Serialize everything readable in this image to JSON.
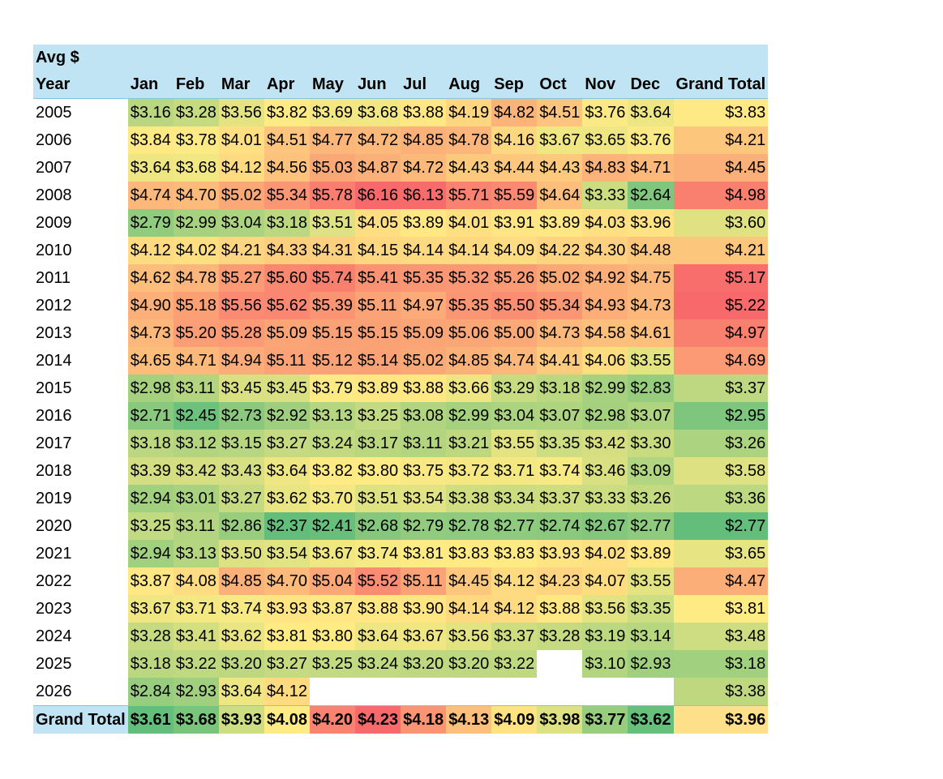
{
  "chart_data": {
    "type": "table",
    "corner_label": "Avg $",
    "row_header": "Year",
    "columns": [
      "Jan",
      "Feb",
      "Mar",
      "Apr",
      "May",
      "Jun",
      "Jul",
      "Aug",
      "Sep",
      "Oct",
      "Nov",
      "Dec"
    ],
    "grand_total_header": "Grand Total",
    "rows": [
      {
        "label": "2005",
        "values": [
          "$3.16",
          "$3.28",
          "$3.56",
          "$3.82",
          "$3.69",
          "$3.68",
          "$3.88",
          "$4.19",
          "$4.82",
          "$4.51",
          "$3.76",
          "$3.64"
        ],
        "total": "$3.83"
      },
      {
        "label": "2006",
        "values": [
          "$3.84",
          "$3.78",
          "$4.01",
          "$4.51",
          "$4.77",
          "$4.72",
          "$4.85",
          "$4.78",
          "$4.16",
          "$3.67",
          "$3.65",
          "$3.76"
        ],
        "total": "$4.21"
      },
      {
        "label": "2007",
        "values": [
          "$3.64",
          "$3.68",
          "$4.12",
          "$4.56",
          "$5.03",
          "$4.87",
          "$4.72",
          "$4.43",
          "$4.44",
          "$4.43",
          "$4.83",
          "$4.71"
        ],
        "total": "$4.45"
      },
      {
        "label": "2008",
        "values": [
          "$4.74",
          "$4.70",
          "$5.02",
          "$5.34",
          "$5.78",
          "$6.16",
          "$6.13",
          "$5.71",
          "$5.59",
          "$4.64",
          "$3.33",
          "$2.64"
        ],
        "total": "$4.98"
      },
      {
        "label": "2009",
        "values": [
          "$2.79",
          "$2.99",
          "$3.04",
          "$3.18",
          "$3.51",
          "$4.05",
          "$3.89",
          "$4.01",
          "$3.91",
          "$3.89",
          "$4.03",
          "$3.96"
        ],
        "total": "$3.60"
      },
      {
        "label": "2010",
        "values": [
          "$4.12",
          "$4.02",
          "$4.21",
          "$4.33",
          "$4.31",
          "$4.15",
          "$4.14",
          "$4.14",
          "$4.09",
          "$4.22",
          "$4.30",
          "$4.48"
        ],
        "total": "$4.21"
      },
      {
        "label": "2011",
        "values": [
          "$4.62",
          "$4.78",
          "$5.27",
          "$5.60",
          "$5.74",
          "$5.41",
          "$5.35",
          "$5.32",
          "$5.26",
          "$5.02",
          "$4.92",
          "$4.75"
        ],
        "total": "$5.17"
      },
      {
        "label": "2012",
        "values": [
          "$4.90",
          "$5.18",
          "$5.56",
          "$5.62",
          "$5.39",
          "$5.11",
          "$4.97",
          "$5.35",
          "$5.50",
          "$5.34",
          "$4.93",
          "$4.73"
        ],
        "total": "$5.22"
      },
      {
        "label": "2013",
        "values": [
          "$4.73",
          "$5.20",
          "$5.28",
          "$5.09",
          "$5.15",
          "$5.15",
          "$5.09",
          "$5.06",
          "$5.00",
          "$4.73",
          "$4.58",
          "$4.61"
        ],
        "total": "$4.97"
      },
      {
        "label": "2014",
        "values": [
          "$4.65",
          "$4.71",
          "$4.94",
          "$5.11",
          "$5.12",
          "$5.14",
          "$5.02",
          "$4.85",
          "$4.74",
          "$4.41",
          "$4.06",
          "$3.55"
        ],
        "total": "$4.69"
      },
      {
        "label": "2015",
        "values": [
          "$2.98",
          "$3.11",
          "$3.45",
          "$3.45",
          "$3.79",
          "$3.89",
          "$3.88",
          "$3.66",
          "$3.29",
          "$3.18",
          "$2.99",
          "$2.83"
        ],
        "total": "$3.37"
      },
      {
        "label": "2016",
        "values": [
          "$2.71",
          "$2.45",
          "$2.73",
          "$2.92",
          "$3.13",
          "$3.25",
          "$3.08",
          "$2.99",
          "$3.04",
          "$3.07",
          "$2.98",
          "$3.07"
        ],
        "total": "$2.95"
      },
      {
        "label": "2017",
        "values": [
          "$3.18",
          "$3.12",
          "$3.15",
          "$3.27",
          "$3.24",
          "$3.17",
          "$3.11",
          "$3.21",
          "$3.55",
          "$3.35",
          "$3.42",
          "$3.30"
        ],
        "total": "$3.26"
      },
      {
        "label": "2018",
        "values": [
          "$3.39",
          "$3.42",
          "$3.43",
          "$3.64",
          "$3.82",
          "$3.80",
          "$3.75",
          "$3.72",
          "$3.71",
          "$3.74",
          "$3.46",
          "$3.09"
        ],
        "total": "$3.58"
      },
      {
        "label": "2019",
        "values": [
          "$2.94",
          "$3.01",
          "$3.27",
          "$3.62",
          "$3.70",
          "$3.51",
          "$3.54",
          "$3.38",
          "$3.34",
          "$3.37",
          "$3.33",
          "$3.26"
        ],
        "total": "$3.36"
      },
      {
        "label": "2020",
        "values": [
          "$3.25",
          "$3.11",
          "$2.86",
          "$2.37",
          "$2.41",
          "$2.68",
          "$2.79",
          "$2.78",
          "$2.77",
          "$2.74",
          "$2.67",
          "$2.77"
        ],
        "total": "$2.77"
      },
      {
        "label": "2021",
        "values": [
          "$2.94",
          "$3.13",
          "$3.50",
          "$3.54",
          "$3.67",
          "$3.74",
          "$3.81",
          "$3.83",
          "$3.83",
          "$3.93",
          "$4.02",
          "$3.89"
        ],
        "total": "$3.65"
      },
      {
        "label": "2022",
        "values": [
          "$3.87",
          "$4.08",
          "$4.85",
          "$4.70",
          "$5.04",
          "$5.52",
          "$5.11",
          "$4.45",
          "$4.12",
          "$4.23",
          "$4.07",
          "$3.55"
        ],
        "total": "$4.47"
      },
      {
        "label": "2023",
        "values": [
          "$3.67",
          "$3.71",
          "$3.74",
          "$3.93",
          "$3.87",
          "$3.88",
          "$3.90",
          "$4.14",
          "$4.12",
          "$3.88",
          "$3.56",
          "$3.35"
        ],
        "total": "$3.81"
      },
      {
        "label": "2024",
        "values": [
          "$3.28",
          "$3.41",
          "$3.62",
          "$3.81",
          "$3.80",
          "$3.64",
          "$3.67",
          "$3.56",
          "$3.37",
          "$3.28",
          "$3.19",
          "$3.14"
        ],
        "total": "$3.48"
      },
      {
        "label": "2025",
        "values": [
          "$3.18",
          "$3.22",
          "$3.20",
          "$3.27",
          "$3.25",
          "$3.24",
          "$3.20",
          "$3.20",
          "$3.22",
          "",
          "$3.10",
          "$2.93"
        ],
        "total": "$3.18"
      },
      {
        "label": "2026",
        "values": [
          "$2.84",
          "$2.93",
          "$3.64",
          "$4.12",
          "",
          "",
          "",
          "",
          "",
          "",
          "",
          ""
        ],
        "total": "$3.38"
      }
    ],
    "grand_total_row": {
      "label": "Grand Total",
      "values": [
        "$3.61",
        "$3.68",
        "$3.93",
        "$4.08",
        "$4.20",
        "$4.23",
        "$4.18",
        "$4.13",
        "$4.09",
        "$3.98",
        "$3.77",
        "$3.62"
      ],
      "total": "$3.96"
    },
    "color_scale": {
      "low": "#63be7b",
      "mid": "#ffeb84",
      "high": "#f8696b"
    }
  }
}
